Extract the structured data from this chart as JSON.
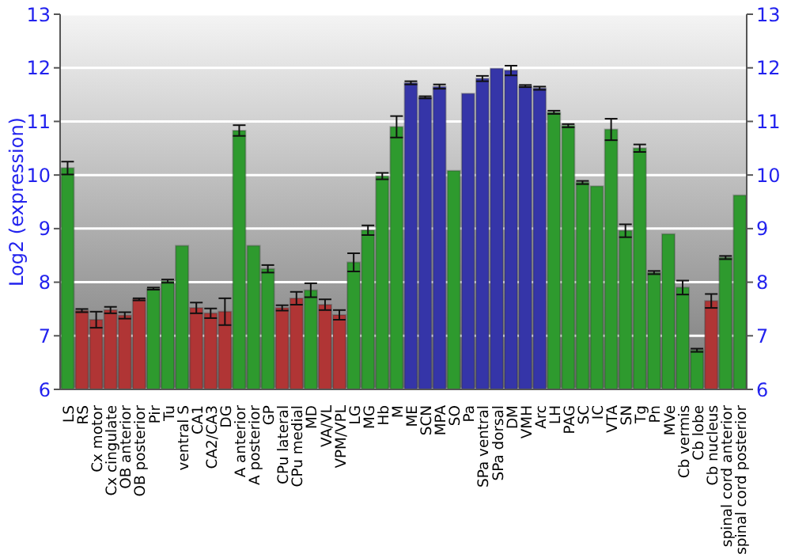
{
  "chart_data": {
    "type": "bar",
    "ylabel": "Log2 (expression)",
    "categories": [
      "LS",
      "RS",
      "Cx motor",
      "Cx cingulate",
      "OB anterior",
      "OB posterior",
      "Pir",
      "Tu",
      "ventral S",
      "CA1",
      "CA2/CA3",
      "DG",
      "A anterior",
      "A posterior",
      "GP",
      "CPu lateral",
      "CPu medial",
      "MD",
      "VA/VL",
      "VPM/VPL",
      "LG",
      "MG",
      "Hb",
      "M",
      "ME",
      "SCN",
      "MPA",
      "SO",
      "Pa",
      "SPa ventral",
      "SPa dorsal",
      "DM",
      "VMH",
      "Arc",
      "LH",
      "PAG",
      "SC",
      "IC",
      "VTA",
      "SN",
      "Tg",
      "Pn",
      "MVe",
      "Cb vermis",
      "Cb lobe",
      "Cb nucleus",
      "spinal cord anterior",
      "spinal cord posterior"
    ],
    "values": [
      10.13,
      7.47,
      7.3,
      7.48,
      7.38,
      7.68,
      7.88,
      8.02,
      8.68,
      7.52,
      7.42,
      7.45,
      10.83,
      8.68,
      8.25,
      7.52,
      7.7,
      7.85,
      7.58,
      7.39,
      8.37,
      8.97,
      9.98,
      10.9,
      11.72,
      11.45,
      11.65,
      10.08,
      11.52,
      11.8,
      11.99,
      11.95,
      11.66,
      11.62,
      11.17,
      10.92,
      9.86,
      9.79,
      10.85,
      8.96,
      10.5,
      8.18,
      8.9,
      7.9,
      6.73,
      7.65,
      8.46,
      9.62
    ],
    "errors": [
      0.12,
      0.03,
      0.15,
      0.06,
      0.06,
      0.02,
      0.02,
      0.03,
      null,
      0.1,
      0.09,
      0.25,
      0.1,
      null,
      0.07,
      0.05,
      0.12,
      0.13,
      0.1,
      0.09,
      0.17,
      0.09,
      0.06,
      0.2,
      0.03,
      0.02,
      0.04,
      null,
      null,
      0.05,
      null,
      0.09,
      0.02,
      0.03,
      0.03,
      0.03,
      0.03,
      null,
      0.2,
      0.12,
      0.07,
      0.03,
      null,
      0.13,
      0.03,
      0.13,
      0.03,
      null
    ],
    "colors": [
      "#2e9a2e",
      "#b03535",
      "#b03535",
      "#b03535",
      "#b03535",
      "#b03535",
      "#2e9a2e",
      "#2e9a2e",
      "#2e9a2e",
      "#b03535",
      "#b03535",
      "#b03535",
      "#2e9a2e",
      "#2e9a2e",
      "#2e9a2e",
      "#b03535",
      "#b03535",
      "#2e9a2e",
      "#b03535",
      "#b03535",
      "#2e9a2e",
      "#2e9a2e",
      "#2e9a2e",
      "#2e9a2e",
      "#3535a8",
      "#3535a8",
      "#3535a8",
      "#2e9a2e",
      "#3535a8",
      "#3535a8",
      "#3535a8",
      "#3535a8",
      "#3535a8",
      "#3535a8",
      "#2e9a2e",
      "#2e9a2e",
      "#2e9a2e",
      "#2e9a2e",
      "#2e9a2e",
      "#2e9a2e",
      "#2e9a2e",
      "#2e9a2e",
      "#2e9a2e",
      "#2e9a2e",
      "#2e9a2e",
      "#b03535",
      "#2e9a2e",
      "#2e9a2e"
    ],
    "ylim": [
      6,
      13
    ],
    "yticks": [
      6,
      7,
      8,
      9,
      10,
      11,
      12,
      13
    ],
    "y2lim": [
      6,
      13
    ],
    "y2ticks": [
      6,
      7,
      8,
      9,
      10,
      11,
      12,
      13
    ],
    "grid": "y"
  }
}
